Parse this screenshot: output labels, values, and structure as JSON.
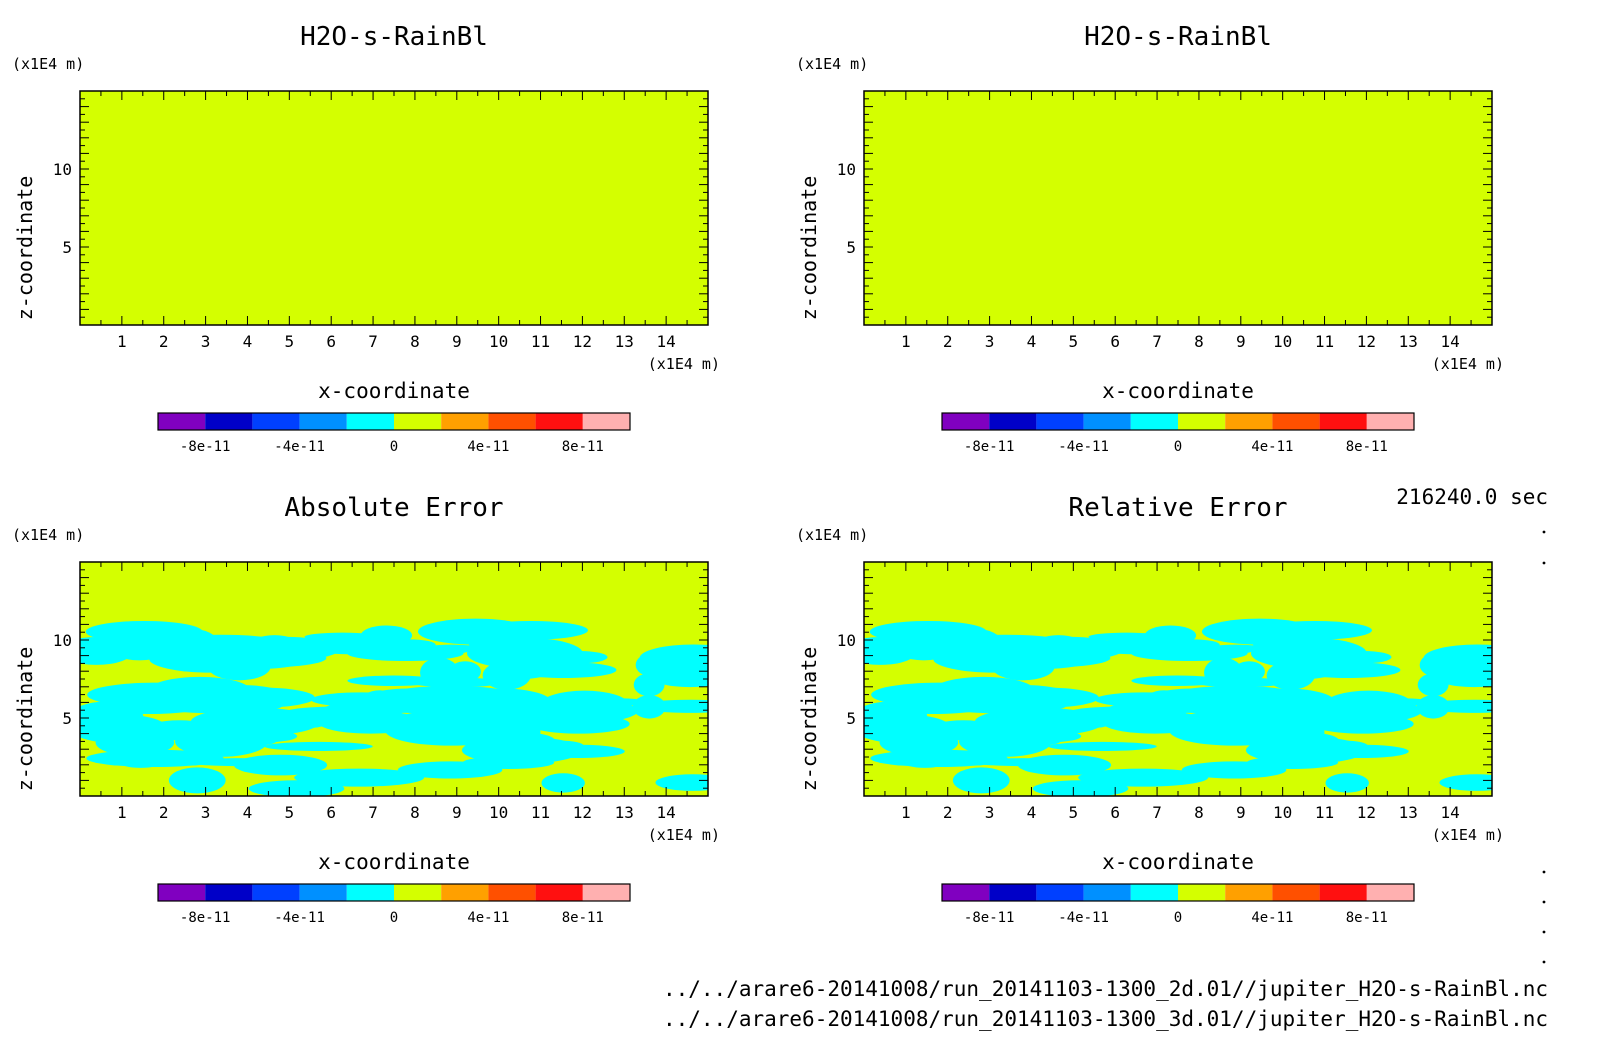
{
  "colors": {
    "background": "#d4ff00",
    "blob": "#00ffff",
    "colorbar": [
      "#8000c0",
      "#0000c8",
      "#0040ff",
      "#0090ff",
      "#00ffff",
      "#d4ff00",
      "#ffa000",
      "#ff5000",
      "#ff1010",
      "#ffb0b0"
    ]
  },
  "footer": {
    "time": "216240.0 sec",
    "file1": "../../arare6-20141008/run_20141103-1300_2d.01//jupiter_H2O-s-RainBl.nc",
    "file2": "../../arare6-20141008/run_20141103-1300_3d.01//jupiter_H2O-s-RainBl.nc"
  },
  "chart_data": [
    {
      "type": "heatmap",
      "title": "H2O-s-RainBl",
      "xlabel": "x-coordinate",
      "ylabel": "z-coordinate",
      "x_unit": "(x1E4 m)",
      "y_unit": "(x1E4 m)",
      "xlim": [
        0,
        15
      ],
      "ylim": [
        0,
        15
      ],
      "xticks": [
        "1",
        "2",
        "3",
        "4",
        "5",
        "6",
        "7",
        "8",
        "9",
        "10",
        "11",
        "12",
        "13",
        "14"
      ],
      "yticks": [
        "5",
        "10"
      ],
      "field": "uniform",
      "colorbar_ticks": [
        "-8e-11",
        "-4e-11",
        "0",
        "4e-11",
        "8e-11"
      ],
      "colorbar_range": [
        -1e-10,
        1e-10
      ]
    },
    {
      "type": "heatmap",
      "title": "H2O-s-RainBl",
      "xlabel": "x-coordinate",
      "ylabel": "z-coordinate",
      "x_unit": "(x1E4 m)",
      "y_unit": "(x1E4 m)",
      "xlim": [
        0,
        15
      ],
      "ylim": [
        0,
        15
      ],
      "xticks": [
        "1",
        "2",
        "3",
        "4",
        "5",
        "6",
        "7",
        "8",
        "9",
        "10",
        "11",
        "12",
        "13",
        "14"
      ],
      "yticks": [
        "5",
        "10"
      ],
      "field": "uniform",
      "colorbar_ticks": [
        "-8e-11",
        "-4e-11",
        "0",
        "4e-11",
        "8e-11"
      ],
      "colorbar_range": [
        -1e-10,
        1e-10
      ]
    },
    {
      "type": "heatmap",
      "title": "Absolute Error",
      "xlabel": "x-coordinate",
      "ylabel": "z-coordinate",
      "x_unit": "(x1E4 m)",
      "y_unit": "(x1E4 m)",
      "xlim": [
        0,
        15
      ],
      "ylim": [
        0,
        15
      ],
      "xticks": [
        "1",
        "2",
        "3",
        "4",
        "5",
        "6",
        "7",
        "8",
        "9",
        "10",
        "11",
        "12",
        "13",
        "14"
      ],
      "yticks": [
        "5",
        "10"
      ],
      "field": "noisy-below-11",
      "colorbar_ticks": [
        "-8e-11",
        "-4e-11",
        "0",
        "4e-11",
        "8e-11"
      ],
      "colorbar_range": [
        -1e-10,
        1e-10
      ]
    },
    {
      "type": "heatmap",
      "title": "Relative Error",
      "xlabel": "x-coordinate",
      "ylabel": "z-coordinate",
      "x_unit": "(x1E4 m)",
      "y_unit": "(x1E4 m)",
      "xlim": [
        0,
        15
      ],
      "ylim": [
        0,
        15
      ],
      "xticks": [
        "1",
        "2",
        "3",
        "4",
        "5",
        "6",
        "7",
        "8",
        "9",
        "10",
        "11",
        "12",
        "13",
        "14"
      ],
      "yticks": [
        "5",
        "10"
      ],
      "field": "noisy-below-11",
      "colorbar_ticks": [
        "-8e-11",
        "-4e-11",
        "0",
        "4e-11",
        "8e-11"
      ],
      "colorbar_range": [
        -1e-10,
        1e-10
      ]
    }
  ]
}
